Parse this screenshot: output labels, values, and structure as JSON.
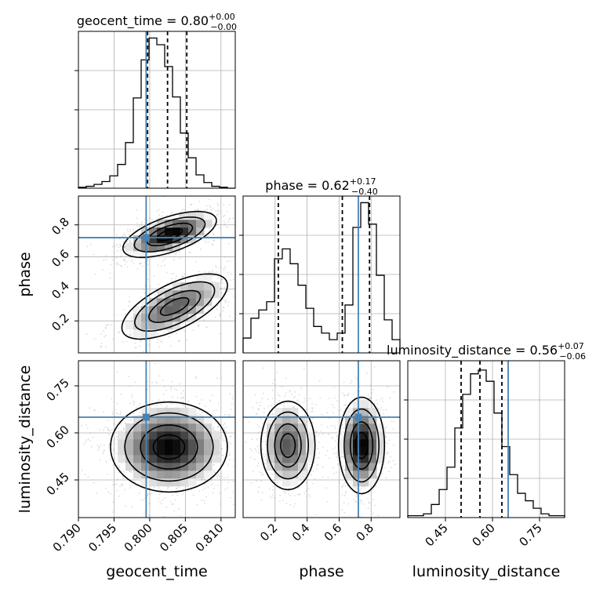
{
  "colors": {
    "truth": "#4682b4",
    "ink": "#000000",
    "grid": "#b0b0b0",
    "density": "#000000"
  },
  "chart_data": {
    "type": "corner",
    "truth": {
      "geocent_time": 0.7995,
      "phase": 0.72,
      "luminosity_distance": 0.65
    },
    "quantile_lines": {
      "geocent_time": [
        0.7997,
        0.8025,
        0.8052
      ],
      "phase": [
        0.22,
        0.62,
        0.79
      ],
      "luminosity_distance": [
        0.5,
        0.56,
        0.63
      ]
    },
    "params": [
      {
        "name": "geocent_time",
        "title": {
          "text": "geocent_time = 0.80",
          "sup": "+0.00",
          "sub": "−0.00"
        },
        "range": [
          0.79,
          0.812
        ],
        "ticks": [
          "0.790",
          "0.795",
          "0.800",
          "0.805",
          "0.810"
        ],
        "tick_values": [
          0.79,
          0.795,
          0.8,
          0.805,
          0.81
        ],
        "hist": [
          1,
          2,
          4,
          7,
          13,
          25,
          48,
          95,
          135,
          158,
          151,
          128,
          96,
          58,
          32,
          14,
          6,
          2,
          1,
          0
        ],
        "hist_max": 165
      },
      {
        "name": "phase",
        "title": {
          "text": "phase = 0.62",
          "sup": "+0.17",
          "sub": "−0.40"
        },
        "range": [
          0.0,
          0.98
        ],
        "ticks": [
          "0.2",
          "0.4",
          "0.6",
          "0.8"
        ],
        "tick_values": [
          0.2,
          0.4,
          0.6,
          0.8
        ],
        "y_ticks": [
          "0.2",
          "0.4",
          "0.6",
          "0.8"
        ],
        "hist": [
          9,
          21,
          26,
          31,
          57,
          63,
          54,
          41,
          27,
          16,
          12,
          8,
          12,
          29,
          76,
          91,
          78,
          47,
          20,
          8
        ],
        "hist_max": 95
      },
      {
        "name": "luminosity_distance",
        "title": {
          "text": "luminosity_distance = 0.56",
          "sup": "+0.07",
          "sub": "−0.06"
        },
        "range": [
          0.33,
          0.83
        ],
        "ticks": [
          "0.45",
          "0.60",
          "0.75"
        ],
        "tick_values": [
          0.45,
          0.6,
          0.75
        ],
        "y_ticks": [
          "0.45",
          "0.60",
          "0.75"
        ],
        "hist": [
          1,
          1,
          2,
          7,
          15,
          27,
          48,
          66,
          77,
          79,
          73,
          56,
          38,
          23,
          13,
          9,
          5,
          2,
          1,
          1
        ],
        "hist_max": 84
      }
    ],
    "x_labels": [
      "geocent_time",
      "phase",
      "luminosity_distance"
    ],
    "y_labels": [
      "phase",
      "luminosity_distance"
    ],
    "pairs": [
      {
        "x": "geocent_time",
        "y": "phase",
        "modes": [
          {
            "cx": 0.8028,
            "cy": 0.74,
            "sx": 0.0032,
            "sy": 0.07,
            "rho": 0.6,
            "weight": 0.62
          },
          {
            "cx": 0.8035,
            "cy": 0.29,
            "sx": 0.004,
            "sy": 0.11,
            "rho": 0.65,
            "weight": 0.38
          }
        ]
      },
      {
        "x": "geocent_time",
        "y": "luminosity_distance",
        "modes": [
          {
            "cx": 0.8027,
            "cy": 0.555,
            "sx": 0.004,
            "sy": 0.07,
            "rho": 0.0,
            "weight": 1.0
          }
        ]
      },
      {
        "x": "phase",
        "y": "luminosity_distance",
        "modes": [
          {
            "cx": 0.28,
            "cy": 0.56,
            "sx": 0.09,
            "sy": 0.075,
            "rho": 0.0,
            "weight": 0.4
          },
          {
            "cx": 0.74,
            "cy": 0.56,
            "sx": 0.07,
            "sy": 0.075,
            "rho": 0.0,
            "weight": 0.6
          }
        ]
      }
    ]
  }
}
